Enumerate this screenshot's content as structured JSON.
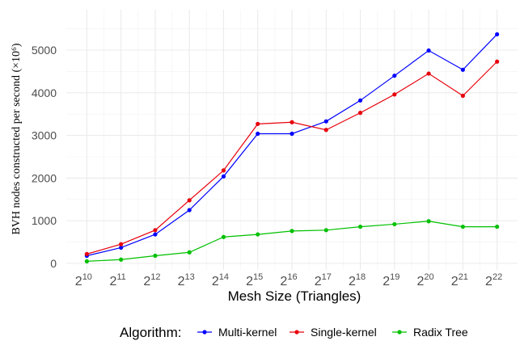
{
  "chart_data": {
    "type": "line",
    "title": "",
    "xlabel": "Mesh Size (Triangles)",
    "ylabel": "BVH nodes constructed per second (×10⁶)",
    "x_tick_base": "2",
    "x_tick_exponents": [
      "10",
      "11",
      "12",
      "13",
      "14",
      "15",
      "16",
      "17",
      "18",
      "19",
      "20",
      "21",
      "22"
    ],
    "x": [
      1024,
      2048,
      4096,
      8192,
      16384,
      32768,
      65536,
      131072,
      262144,
      524288,
      1048576,
      2097152,
      4194304
    ],
    "y_ticks": [
      0,
      1000,
      2000,
      3000,
      4000,
      5000
    ],
    "ylim": [
      0,
      5500
    ],
    "grid": true,
    "legend_title": "Algorithm:",
    "legend_position": "bottom",
    "series": [
      {
        "name": "Multi-kernel",
        "color": "#0000ff",
        "values": [
          180,
          370,
          680,
          1250,
          2040,
          3040,
          3040,
          3330,
          3820,
          4400,
          4990,
          4540,
          5370
        ]
      },
      {
        "name": "Single-kernel",
        "color": "#e8000b",
        "values": [
          220,
          450,
          780,
          1480,
          2180,
          3270,
          3310,
          3130,
          3530,
          3960,
          4450,
          3930,
          4730
        ]
      },
      {
        "name": "Radix Tree",
        "color": "#00c000",
        "values": [
          50,
          90,
          180,
          260,
          620,
          680,
          760,
          780,
          860,
          920,
          990,
          860,
          860
        ]
      }
    ]
  }
}
